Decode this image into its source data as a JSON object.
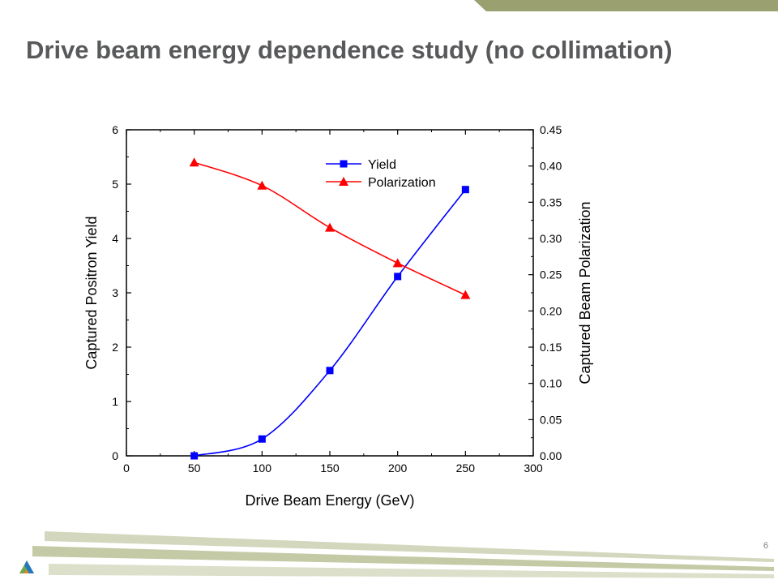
{
  "slide": {
    "title": "Drive beam energy dependence study (no collimation)",
    "page_number": "6",
    "accent_color": "#9aa070"
  },
  "chart_data": {
    "type": "line",
    "title": "",
    "xlabel": "Drive Beam Energy (GeV)",
    "ylabel": "Captured Positron Yield",
    "y2label": "Captured Beam Polarization",
    "xlim": [
      0,
      300
    ],
    "ylim": [
      0,
      6
    ],
    "y2lim": [
      0,
      0.45
    ],
    "x_ticks": [
      0,
      50,
      100,
      150,
      200,
      250,
      300
    ],
    "y_ticks": [
      0,
      1,
      2,
      3,
      4,
      5,
      6
    ],
    "y2_ticks": [
      "0.00",
      "0.05",
      "0.10",
      "0.15",
      "0.20",
      "0.25",
      "0.30",
      "0.35",
      "0.40",
      "0.45"
    ],
    "grid": false,
    "legend_position": "top-center",
    "series": [
      {
        "name": "Yield",
        "axis": "left",
        "marker": "square",
        "color": "#0000ff",
        "x": [
          50,
          100,
          150,
          200,
          250
        ],
        "values": [
          0.0,
          0.31,
          1.57,
          3.3,
          4.9
        ]
      },
      {
        "name": "Polarization",
        "axis": "right",
        "marker": "triangle",
        "color": "#ff0000",
        "x": [
          50,
          100,
          150,
          200,
          250
        ],
        "values": [
          0.405,
          0.373,
          0.315,
          0.266,
          0.222
        ]
      }
    ]
  }
}
